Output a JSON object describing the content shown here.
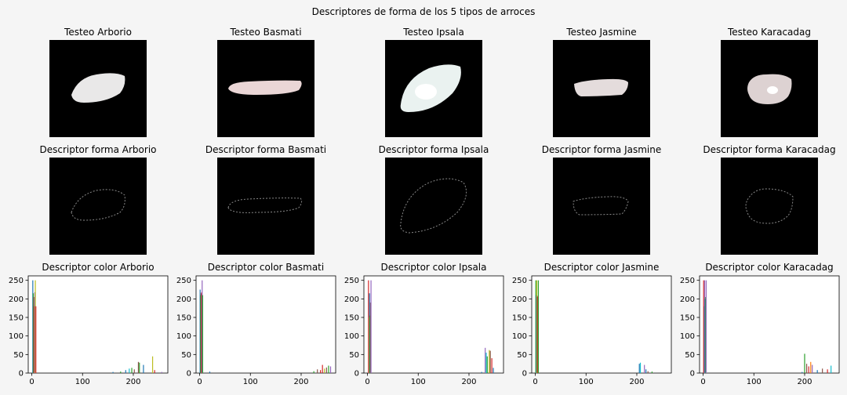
{
  "suptitle": "Descriptores de forma de los 5 tipos de arroces",
  "panels": [
    {
      "image_title": "Testeo Arborio",
      "shape_title": "Descriptor forma Arborio",
      "color_title": "Descriptor color Arborio"
    },
    {
      "image_title": "Testeo Basmati",
      "shape_title": "Descriptor forma Basmati",
      "color_title": "Descriptor color Basmati"
    },
    {
      "image_title": "Testeo Ipsala",
      "shape_title": "Descriptor forma Ipsala",
      "color_title": "Descriptor color Ipsala"
    },
    {
      "image_title": "Testeo Jasmine",
      "shape_title": "Descriptor forma Jasmine",
      "color_title": "Descriptor color Jasmine"
    },
    {
      "image_title": "Testeo Karacadag",
      "shape_title": "Descriptor forma Karacadag",
      "color_title": "Descriptor color Karacadag"
    }
  ],
  "chart_data": [
    {
      "type": "bar",
      "title": "Descriptor color Arborio",
      "xlim": [
        -7,
        268
      ],
      "ylim": [
        0,
        262
      ],
      "xticks": [
        0,
        100,
        200
      ],
      "yticks": [
        0,
        50,
        100,
        150,
        200,
        250
      ],
      "bars": [
        {
          "x": 2,
          "y": 250,
          "color": "#1f77b4"
        },
        {
          "x": 3,
          "y": 215,
          "color": "#2ca02c"
        },
        {
          "x": 4,
          "y": 205,
          "color": "#8c564b"
        },
        {
          "x": 5,
          "y": 180,
          "color": "#d62728"
        },
        {
          "x": 6,
          "y": 218,
          "color": "#9467bd"
        },
        {
          "x": 7,
          "y": 250,
          "color": "#bcbd22"
        },
        {
          "x": 8,
          "y": 180,
          "color": "#d62728"
        },
        {
          "x": 160,
          "y": 3,
          "color": "#1f77b4"
        },
        {
          "x": 175,
          "y": 4,
          "color": "#2ca02c"
        },
        {
          "x": 185,
          "y": 8,
          "color": "#1f77b4"
        },
        {
          "x": 192,
          "y": 12,
          "color": "#17becf"
        },
        {
          "x": 197,
          "y": 14,
          "color": "#2ca02c"
        },
        {
          "x": 202,
          "y": 10,
          "color": "#8c564b"
        },
        {
          "x": 210,
          "y": 30,
          "color": "#8c564b"
        },
        {
          "x": 212,
          "y": 28,
          "color": "#2ca02c"
        },
        {
          "x": 220,
          "y": 22,
          "color": "#1f77b4"
        },
        {
          "x": 238,
          "y": 45,
          "color": "#bcbd22"
        },
        {
          "x": 242,
          "y": 8,
          "color": "#d62728"
        },
        {
          "x": 256,
          "y": 3,
          "color": "#9467bd"
        }
      ]
    },
    {
      "type": "bar",
      "title": "Descriptor color Basmati",
      "xlim": [
        -7,
        268
      ],
      "ylim": [
        0,
        262
      ],
      "xticks": [
        0,
        100,
        200
      ],
      "yticks": [
        0,
        50,
        100,
        150,
        200,
        250
      ],
      "bars": [
        {
          "x": 1,
          "y": 225,
          "color": "#1f77b4"
        },
        {
          "x": 2,
          "y": 210,
          "color": "#2ca02c"
        },
        {
          "x": 3,
          "y": 215,
          "color": "#8c564b"
        },
        {
          "x": 4,
          "y": 218,
          "color": "#d62728"
        },
        {
          "x": 5,
          "y": 250,
          "color": "#9467bd"
        },
        {
          "x": 6,
          "y": 210,
          "color": "#2ca02c"
        },
        {
          "x": 20,
          "y": 4,
          "color": "#1f77b4"
        },
        {
          "x": 225,
          "y": 5,
          "color": "#2ca02c"
        },
        {
          "x": 232,
          "y": 10,
          "color": "#8c564b"
        },
        {
          "x": 238,
          "y": 8,
          "color": "#d62728"
        },
        {
          "x": 242,
          "y": 22,
          "color": "#d62728"
        },
        {
          "x": 246,
          "y": 12,
          "color": "#bcbd22"
        },
        {
          "x": 250,
          "y": 15,
          "color": "#8c564b"
        },
        {
          "x": 254,
          "y": 20,
          "color": "#2ca02c"
        },
        {
          "x": 258,
          "y": 18,
          "color": "#9467bd"
        }
      ]
    },
    {
      "type": "bar",
      "title": "Descriptor color Ipsala",
      "xlim": [
        -7,
        268
      ],
      "ylim": [
        0,
        262
      ],
      "xticks": [
        0,
        100,
        200
      ],
      "yticks": [
        0,
        50,
        100,
        150,
        200,
        250
      ],
      "bars": [
        {
          "x": 2,
          "y": 250,
          "color": "#d62728"
        },
        {
          "x": 3,
          "y": 150,
          "color": "#ff7f0e"
        },
        {
          "x": 4,
          "y": 215,
          "color": "#1f77b4"
        },
        {
          "x": 5,
          "y": 155,
          "color": "#2ca02c"
        },
        {
          "x": 6,
          "y": 190,
          "color": "#8c564b"
        },
        {
          "x": 7,
          "y": 250,
          "color": "#9467bd"
        },
        {
          "x": 225,
          "y": 3,
          "color": "#1f77b4"
        },
        {
          "x": 232,
          "y": 68,
          "color": "#9467bd"
        },
        {
          "x": 234,
          "y": 55,
          "color": "#17becf"
        },
        {
          "x": 236,
          "y": 45,
          "color": "#2ca02c"
        },
        {
          "x": 240,
          "y": 62,
          "color": "#bcbd22"
        },
        {
          "x": 242,
          "y": 60,
          "color": "#8c564b"
        },
        {
          "x": 245,
          "y": 40,
          "color": "#d62728"
        },
        {
          "x": 248,
          "y": 14,
          "color": "#1f77b4"
        }
      ]
    },
    {
      "type": "bar",
      "title": "Descriptor color Jasmine",
      "xlim": [
        -7,
        268
      ],
      "ylim": [
        0,
        262
      ],
      "xticks": [
        0,
        100,
        200
      ],
      "yticks": [
        0,
        50,
        100,
        150,
        200,
        250
      ],
      "bars": [
        {
          "x": 1,
          "y": 250,
          "color": "#2ca02c"
        },
        {
          "x": 2,
          "y": 210,
          "color": "#1f77b4"
        },
        {
          "x": 3,
          "y": 250,
          "color": "#bcbd22"
        },
        {
          "x": 4,
          "y": 205,
          "color": "#8c564b"
        },
        {
          "x": 5,
          "y": 208,
          "color": "#d62728"
        },
        {
          "x": 6,
          "y": 250,
          "color": "#2ca02c"
        },
        {
          "x": 205,
          "y": 25,
          "color": "#1f77b4"
        },
        {
          "x": 207,
          "y": 28,
          "color": "#17becf"
        },
        {
          "x": 215,
          "y": 22,
          "color": "#9467bd"
        },
        {
          "x": 218,
          "y": 10,
          "color": "#1f77b4"
        },
        {
          "x": 222,
          "y": 5,
          "color": "#8c564b"
        },
        {
          "x": 230,
          "y": 4,
          "color": "#2ca02c"
        }
      ]
    },
    {
      "type": "bar",
      "title": "Descriptor color Karacadag",
      "xlim": [
        -7,
        268
      ],
      "ylim": [
        0,
        262
      ],
      "xticks": [
        0,
        100,
        200
      ],
      "yticks": [
        0,
        50,
        100,
        150,
        200,
        250
      ],
      "bars": [
        {
          "x": 1,
          "y": 250,
          "color": "#d62728"
        },
        {
          "x": 2,
          "y": 180,
          "color": "#8c564b"
        },
        {
          "x": 3,
          "y": 250,
          "color": "#9467bd"
        },
        {
          "x": 4,
          "y": 200,
          "color": "#1f77b4"
        },
        {
          "x": 5,
          "y": 205,
          "color": "#2ca02c"
        },
        {
          "x": 6,
          "y": 250,
          "color": "#9467bd"
        },
        {
          "x": 195,
          "y": 3,
          "color": "#1f77b4"
        },
        {
          "x": 200,
          "y": 52,
          "color": "#2ca02c"
        },
        {
          "x": 204,
          "y": 25,
          "color": "#8c564b"
        },
        {
          "x": 208,
          "y": 18,
          "color": "#d62728"
        },
        {
          "x": 212,
          "y": 30,
          "color": "#ff7f0e"
        },
        {
          "x": 215,
          "y": 22,
          "color": "#9467bd"
        },
        {
          "x": 225,
          "y": 8,
          "color": "#1f77b4"
        },
        {
          "x": 235,
          "y": 12,
          "color": "#8c564b"
        },
        {
          "x": 245,
          "y": 10,
          "color": "#d62728"
        },
        {
          "x": 252,
          "y": 20,
          "color": "#17becf"
        }
      ]
    }
  ]
}
